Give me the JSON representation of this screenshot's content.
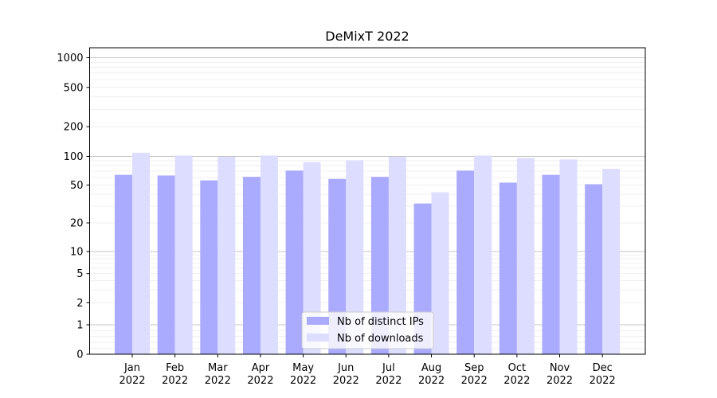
{
  "chart_data": {
    "type": "bar",
    "title": "DeMixT 2022",
    "xlabel": "",
    "ylabel": "",
    "y_scale": "symlog",
    "ylim": [
      0,
      1300
    ],
    "y_ticks": [
      0,
      1,
      2,
      5,
      10,
      20,
      50,
      100,
      200,
      500,
      1000
    ],
    "y_tick_labels": [
      "0",
      "1",
      "2",
      "5",
      "10",
      "20",
      "50",
      "100",
      "200",
      "500",
      "1000"
    ],
    "categories": [
      "Jan\n2022",
      "Feb\n2022",
      "Mar\n2022",
      "Apr\n2022",
      "May\n2022",
      "Jun\n2022",
      "Jul\n2022",
      "Aug\n2022",
      "Sep\n2022",
      "Oct\n2022",
      "Nov\n2022",
      "Dec\n2022"
    ],
    "category_labels": [
      {
        "month": "Jan",
        "year": "2022"
      },
      {
        "month": "Feb",
        "year": "2022"
      },
      {
        "month": "Mar",
        "year": "2022"
      },
      {
        "month": "Apr",
        "year": "2022"
      },
      {
        "month": "May",
        "year": "2022"
      },
      {
        "month": "Jun",
        "year": "2022"
      },
      {
        "month": "Jul",
        "year": "2022"
      },
      {
        "month": "Aug",
        "year": "2022"
      },
      {
        "month": "Sep",
        "year": "2022"
      },
      {
        "month": "Oct",
        "year": "2022"
      },
      {
        "month": "Nov",
        "year": "2022"
      },
      {
        "month": "Dec",
        "year": "2022"
      }
    ],
    "series": [
      {
        "name": "Nb of distinct IPs",
        "color": "#aaaaff",
        "values": [
          64,
          63,
          56,
          61,
          71,
          58,
          61,
          32,
          71,
          53,
          64,
          51
        ]
      },
      {
        "name": "Nb of downloads",
        "color": "#ddddff",
        "values": [
          109,
          102,
          99,
          102,
          87,
          91,
          99,
          42,
          102,
          96,
          93,
          74
        ]
      }
    ],
    "grid": true,
    "legend_position": "lower-center"
  }
}
